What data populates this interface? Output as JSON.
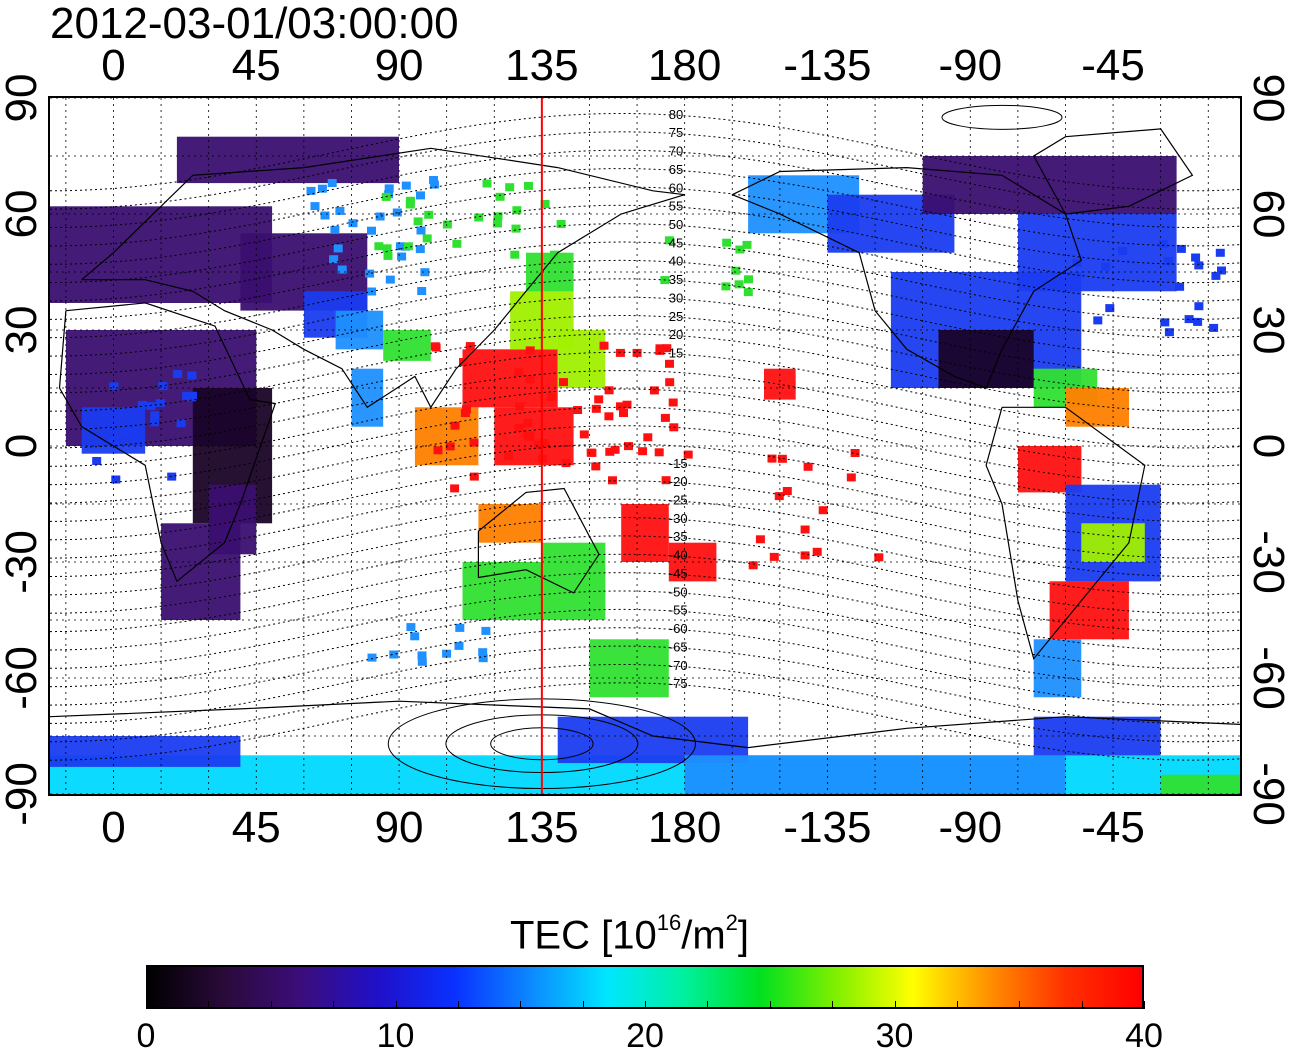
{
  "title": "2012-03-01/03:00:00",
  "x_ticks_top": [
    "0",
    "45",
    "90",
    "135",
    "180",
    "-135",
    "-90",
    "-45"
  ],
  "x_ticks_bottom": [
    "0",
    "45",
    "90",
    "135",
    "180",
    "-135",
    "-90",
    "-45"
  ],
  "y_ticks_left": [
    "90",
    "60",
    "30",
    "0",
    "-30",
    "-60",
    "-90"
  ],
  "y_ticks_right": [
    "90",
    "60",
    "30",
    "0",
    "-30",
    "-60",
    "-90"
  ],
  "contour_labels": [
    "80",
    "75",
    "70",
    "65",
    "60",
    "55",
    "50",
    "45",
    "40",
    "35",
    "30",
    "25",
    "20",
    "15",
    "-15",
    "-20",
    "-25",
    "-30",
    "-35",
    "-40",
    "-45",
    "-50",
    "-55",
    "-60",
    "-65",
    "-70",
    "-75"
  ],
  "colorbar": {
    "title": "TEC  [10",
    "title_exp1": "16",
    "title_mid": "/m",
    "title_exp2": "2",
    "title_end": "]",
    "labels": [
      "0",
      "10",
      "20",
      "30",
      "40"
    ],
    "min": 0,
    "max": 40,
    "colors": [
      "#000000",
      "#2a0a3a",
      "#3b0d7a",
      "#2010c8",
      "#0a30ff",
      "#0c88ff",
      "#00e6ff",
      "#00f0a0",
      "#00e020",
      "#80f000",
      "#ffff00",
      "#ff9000",
      "#ff3000",
      "#ff0000"
    ]
  },
  "map": {
    "lon_range": [
      -20,
      355
    ],
    "lat_range": [
      -90,
      90
    ],
    "marker_longitude": 135,
    "marker_color": "#ff0000",
    "colors": {
      "deep_purple": "#3a0f70",
      "dark": "#1a0428",
      "blue": "#1a3cf0",
      "lightblue": "#1e90ff",
      "cyan": "#00d8ff",
      "green": "#30e030",
      "yellowgreen": "#a0f000",
      "orange": "#ff8000",
      "red": "#ff1010"
    }
  }
}
